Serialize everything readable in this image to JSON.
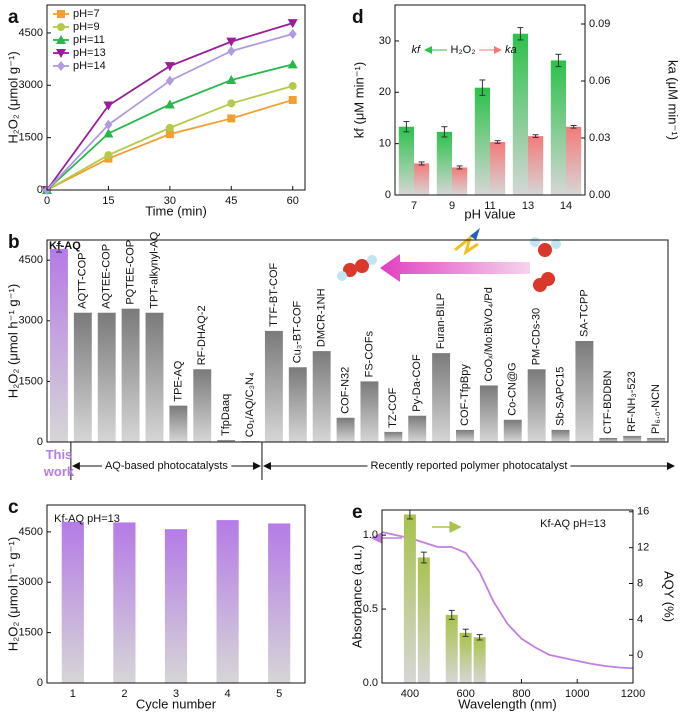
{
  "chart_data": [
    {
      "panel": "a",
      "type": "line",
      "x": [
        0,
        15,
        30,
        45,
        60
      ],
      "xlim": [
        0,
        63
      ],
      "xticks": [
        0,
        15,
        30,
        45,
        60
      ],
      "ylim": [
        0,
        5300
      ],
      "yticks": [
        0,
        1500,
        3000,
        4500
      ],
      "xlabel": "Time (min)",
      "ylabel": "H₂O₂ (μmol g⁻¹)",
      "legend": "upper left",
      "series": [
        {
          "name": "pH=7",
          "color": "#f0a030",
          "marker": "square",
          "values": [
            0,
            900,
            1600,
            2050,
            2580
          ]
        },
        {
          "name": "pH=9",
          "color": "#b5c94a",
          "marker": "circle",
          "values": [
            0,
            1000,
            1780,
            2480,
            2980
          ]
        },
        {
          "name": "pH=11",
          "color": "#27b84a",
          "marker": "triangle",
          "values": [
            0,
            1620,
            2450,
            3150,
            3600
          ]
        },
        {
          "name": "pH=13",
          "color": "#9b1d9b",
          "marker": "triangle-down",
          "values": [
            0,
            2420,
            3550,
            4250,
            4780
          ]
        },
        {
          "name": "pH=14",
          "color": "#b09be0",
          "marker": "diamond",
          "values": [
            0,
            1870,
            3130,
            3980,
            4470
          ]
        }
      ]
    },
    {
      "panel": "d",
      "type": "bar",
      "categories": [
        "7",
        "9",
        "11",
        "13",
        "14"
      ],
      "xlabel": "pH value",
      "ylabel": "kf (μM min⁻¹)",
      "y2label": "ka (μM min⁻¹)",
      "ylim": [
        0,
        37
      ],
      "yticks": [
        0,
        10,
        20,
        30
      ],
      "y2lim": [
        0,
        0.1
      ],
      "y2ticks": [
        {
          "value": 0,
          "label": "0.00"
        },
        0.03,
        0.06,
        0.09
      ],
      "annotation": "H₂O₂",
      "series": [
        {
          "name": "kf",
          "color": "#2bc24a",
          "values": [
            13.3,
            12.3,
            20.9,
            31.4,
            26.2
          ],
          "errors": [
            1.0,
            1.0,
            1.5,
            1.2,
            1.2
          ]
        },
        {
          "name": "ka",
          "color": "#f47a7a",
          "axis": "y2",
          "values": [
            0.0166,
            0.0145,
            0.0279,
            0.031,
            0.0359
          ],
          "errors": [
            0.0008,
            0.0008,
            0.0007,
            0.0007,
            0.0007
          ]
        }
      ]
    },
    {
      "panel": "b",
      "type": "bar",
      "ylim": [
        0,
        5000
      ],
      "yticks": [
        0,
        1500,
        3000,
        4500
      ],
      "ylabel": "H₂O₂ (μmol h⁻¹ g⁻¹)",
      "color": "#7a7a7a",
      "highlight": 0,
      "highlight_color": "#b57be6",
      "categories": [
        "Kf-AQ",
        "AQTT-COP",
        "AQTEE-COP",
        "PQTEE-COP",
        "TPT-alkynyl-AQ",
        "TPE-AQ",
        "RF-DHAQ-2",
        "TfpDaaq",
        "Co₁/AQ/C₃N₄",
        "TTF-BT-COF",
        "Cu₃-BT-COF",
        "DMCR-1NH",
        "COF-N32",
        "FS-COFs",
        "TZ-COF",
        "Py-Da-COF",
        "Furan-BILP",
        "COF-TfpBpy",
        "CoOₓ/Mo:BiVO₄/Pd",
        "Co-CN@G",
        "PM-CDs-30",
        "Sb-SAPC15",
        "SA-TCPP",
        "CTF-BDDBN",
        "RF-NH₃-523",
        "PI₆.₀-NCN"
      ],
      "values": [
        4780,
        3200,
        3200,
        3300,
        3200,
        900,
        1800,
        50,
        20,
        2750,
        1850,
        2250,
        600,
        1500,
        250,
        650,
        2200,
        300,
        1400,
        550,
        1800,
        300,
        2500,
        100,
        150,
        100
      ],
      "errors": [
        80,
        null,
        null,
        null,
        null,
        null,
        null,
        null,
        null,
        null,
        null,
        null,
        null,
        null,
        null,
        null,
        null,
        null,
        null,
        null,
        null,
        null,
        null,
        null,
        null,
        null
      ],
      "annotations": [
        "This work",
        "AQ-based photocatalysts",
        "Recently reported polymer photocatalyst"
      ]
    },
    {
      "panel": "c",
      "type": "bar",
      "categories": [
        "1",
        "2",
        "3",
        "4",
        "5"
      ],
      "values": [
        4800,
        4780,
        4580,
        4850,
        4750
      ],
      "color": "#b57be6",
      "ylim": [
        0,
        5300
      ],
      "yticks": [
        0,
        1500,
        3000,
        4500
      ],
      "xlabel": "Cycle number",
      "ylabel": "H₂O₂ (μmol h⁻¹ g⁻¹)",
      "annotation": "Kf-AQ  pH=13"
    },
    {
      "panel": "e",
      "type": "line",
      "xlim": [
        300,
        1200
      ],
      "xticks": [
        400,
        600,
        800,
        1000,
        1200
      ],
      "ylim": [
        0,
        1.17
      ],
      "yticks": [
        {
          "value": 0,
          "label": "0.0"
        },
        0.5,
        {
          "value": 1,
          "label": "1.0"
        }
      ],
      "y2lim": [
        -3.1,
        16.2
      ],
      "y2ticks": [
        0,
        4,
        8,
        12,
        16
      ],
      "xlabel": "Wavelength (nm)",
      "ylabel": "Absorbance (a.u.)",
      "y2label": "AQY (%)",
      "annotation": "Kf-AQ  pH=13",
      "series": [
        {
          "type": "line",
          "color": "#c27fe0",
          "x": [
            300,
            350,
            400,
            450,
            500,
            550,
            600,
            650,
            700,
            750,
            800,
            850,
            900,
            950,
            1000,
            1050,
            1100,
            1150,
            1200
          ],
          "values": [
            1.02,
            1.0,
            0.98,
            0.95,
            0.92,
            0.92,
            0.88,
            0.75,
            0.55,
            0.4,
            0.3,
            0.24,
            0.19,
            0.17,
            0.15,
            0.13,
            0.115,
            0.105,
            0.1
          ]
        },
        {
          "type": "bar",
          "axis": "y2",
          "color": "#a8c24a",
          "x": [
            400,
            450,
            550,
            600,
            650
          ],
          "values": [
            15.7,
            10.9,
            4.5,
            2.5,
            2.0
          ],
          "errors": [
            0.5,
            0.6,
            0.5,
            0.4,
            0.3
          ]
        }
      ]
    }
  ]
}
